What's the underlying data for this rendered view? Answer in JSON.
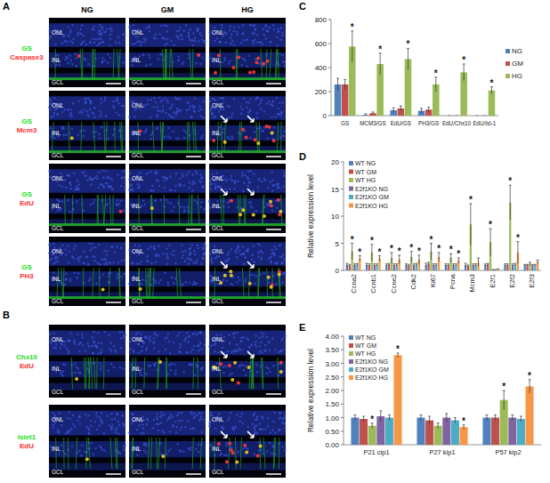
{
  "panels": {
    "A": {
      "label": "A",
      "columns": [
        "NG",
        "GM",
        "HG"
      ],
      "rows": [
        {
          "stains": [
            "GS",
            "Caspase3"
          ],
          "colors": [
            "#22dd22",
            "#ff3030"
          ]
        },
        {
          "stains": [
            "GS",
            "Mcm3"
          ],
          "colors": [
            "#22dd22",
            "#ff3030"
          ]
        },
        {
          "stains": [
            "GS",
            "EdU"
          ],
          "colors": [
            "#22dd22",
            "#ff3030"
          ]
        },
        {
          "stains": [
            "GS",
            "PH3"
          ],
          "colors": [
            "#22dd22",
            "#ff3030"
          ]
        }
      ]
    },
    "B": {
      "label": "B",
      "rows": [
        {
          "stains": [
            "Chx10",
            "EdU"
          ],
          "colors": [
            "#22dd22",
            "#ff3030"
          ]
        },
        {
          "stains": [
            "Islet1",
            "EdU"
          ],
          "colors": [
            "#22dd22",
            "#ff3030"
          ]
        }
      ]
    },
    "layers": [
      "ONL",
      "INL",
      "GCL"
    ]
  },
  "chart_data": [
    {
      "type": "bar",
      "panel_label": "C",
      "categories": [
        "GS",
        "MCM3/GS",
        "EdU/GS",
        "PH3/GS",
        "EdU/Chx10",
        "EdU/Isl-1"
      ],
      "series": [
        {
          "name": "NG",
          "color": "#4f81bd",
          "values": [
            260,
            5,
            45,
            40,
            0,
            0
          ],
          "errors": [
            50,
            10,
            20,
            20,
            0,
            0
          ]
        },
        {
          "name": "GM",
          "color": "#c0504d",
          "values": [
            260,
            20,
            60,
            50,
            0,
            0
          ],
          "errors": [
            40,
            10,
            20,
            20,
            0,
            0
          ]
        },
        {
          "name": "HG",
          "color": "#9bbb59",
          "values": [
            575,
            430,
            470,
            260,
            360,
            210
          ],
          "errors": [
            130,
            90,
            90,
            60,
            70,
            30
          ]
        }
      ],
      "ylim": [
        0,
        800
      ],
      "yticks": [
        0,
        200,
        400,
        600,
        800
      ],
      "legend": "right",
      "annotations": [
        {
          "text": "*",
          "category": 0,
          "series": 2
        },
        {
          "text": "*",
          "category": 1,
          "series": 2
        },
        {
          "text": "*",
          "category": 2,
          "series": 2
        },
        {
          "text": "*",
          "category": 3,
          "series": 2
        },
        {
          "text": "*",
          "category": 4,
          "series": 2
        },
        {
          "text": "*",
          "category": 5,
          "series": 2
        }
      ]
    },
    {
      "type": "bar",
      "panel_label": "D",
      "ylabel": "Relative expression level",
      "categories": [
        "Ccna2",
        "Ccnb1",
        "Ccne2",
        "Cdk2",
        "Ki67",
        "Pcna",
        "Mcm3",
        "E2f1",
        "E2f2",
        "E2f3"
      ],
      "series": [
        {
          "name": "WT NG",
          "color": "#4f81bd",
          "values": [
            1,
            1,
            1,
            1,
            1,
            1,
            1,
            1,
            1,
            1
          ],
          "errors": [
            0.3,
            0.3,
            0.2,
            0.2,
            0.3,
            0.2,
            0.3,
            0.2,
            0.2,
            0.1
          ]
        },
        {
          "name": "WT GM",
          "color": "#c0504d",
          "values": [
            0.9,
            1.0,
            1.1,
            0.9,
            1.2,
            1.0,
            0.8,
            1.1,
            1.0,
            1.0
          ],
          "errors": [
            0.2,
            0.2,
            0.2,
            0.2,
            0.3,
            0.2,
            0.2,
            0.2,
            0.2,
            0.1
          ]
        },
        {
          "name": "WT HG",
          "color": "#9bbb59",
          "values": [
            3.5,
            3.3,
            2.3,
            2.5,
            3.5,
            2.3,
            8.5,
            5.2,
            12.5,
            1.2
          ],
          "errors": [
            1.5,
            1.5,
            1.0,
            1.0,
            1.5,
            0.8,
            3.8,
            2.5,
            3.2,
            0.3
          ]
        },
        {
          "name": "E2f1KO NG",
          "color": "#8064a2",
          "values": [
            1,
            1,
            1,
            1,
            1,
            1,
            1,
            0.1,
            1,
            1
          ],
          "errors": [
            0.2,
            0.2,
            0.2,
            0.2,
            0.2,
            0.2,
            0.2,
            0.05,
            0.2,
            0.1
          ]
        },
        {
          "name": "E2f1KO GM",
          "color": "#4bacc6",
          "values": [
            1.1,
            1.0,
            1.0,
            1.1,
            1.0,
            1.0,
            1.0,
            0.1,
            1.1,
            1.0
          ],
          "errors": [
            0.2,
            0.2,
            0.2,
            0.2,
            0.2,
            0.2,
            0.2,
            0.05,
            0.2,
            0.1
          ]
        },
        {
          "name": "E2f1KO HG",
          "color": "#f79646",
          "values": [
            2.2,
            2.2,
            2.0,
            2.0,
            2.5,
            1.8,
            1.5,
            0.2,
            3.3,
            1.6
          ],
          "errors": [
            0.5,
            0.5,
            0.8,
            0.8,
            0.8,
            0.5,
            0.8,
            0.1,
            2.0,
            0.3
          ]
        }
      ],
      "ylim": [
        0,
        20
      ],
      "yticks": [
        0,
        5,
        10,
        15,
        20
      ],
      "legend": "upper left",
      "annotations": [
        {
          "text": "*",
          "category": 0,
          "series": 2
        },
        {
          "text": "*",
          "category": 1,
          "series": 2
        },
        {
          "text": "*",
          "category": 2,
          "series": 2
        },
        {
          "text": "*",
          "category": 3,
          "series": 2
        },
        {
          "text": "*",
          "category": 4,
          "series": 2
        },
        {
          "text": "*",
          "category": 5,
          "series": 2
        },
        {
          "text": "*",
          "category": 6,
          "series": 2
        },
        {
          "text": "*",
          "category": 7,
          "series": 2
        },
        {
          "text": "*",
          "category": 8,
          "series": 2
        },
        {
          "text": "*",
          "category": 0,
          "series": 5
        },
        {
          "text": "*",
          "category": 1,
          "series": 5
        },
        {
          "text": "*",
          "category": 2,
          "series": 5
        },
        {
          "text": "*",
          "category": 3,
          "series": 5
        },
        {
          "text": "*",
          "category": 4,
          "series": 5
        },
        {
          "text": "*",
          "category": 5,
          "series": 5
        },
        {
          "text": "*",
          "category": 8,
          "series": 5
        }
      ]
    },
    {
      "type": "bar",
      "panel_label": "E",
      "ylabel": "Relative expression level",
      "categories": [
        "P21 cip1",
        "P27 kip1",
        "P57 kip2"
      ],
      "series": [
        {
          "name": "WT NG",
          "color": "#4f81bd",
          "values": [
            1.0,
            1.0,
            1.0
          ],
          "errors": [
            0.1,
            0.1,
            0.1
          ]
        },
        {
          "name": "WT GM",
          "color": "#c0504d",
          "values": [
            0.95,
            0.9,
            1.0
          ],
          "errors": [
            0.1,
            0.15,
            0.1
          ]
        },
        {
          "name": "WT HG",
          "color": "#9bbb59",
          "values": [
            0.7,
            0.7,
            1.65
          ],
          "errors": [
            0.1,
            0.1,
            0.35
          ]
        },
        {
          "name": "E2f1KO NG",
          "color": "#8064a2",
          "values": [
            1.05,
            1.0,
            1.0
          ],
          "errors": [
            0.2,
            0.15,
            0.1
          ]
        },
        {
          "name": "E2f1KO GM",
          "color": "#4bacc6",
          "values": [
            1.0,
            0.9,
            0.95
          ],
          "errors": [
            0.1,
            0.1,
            0.1
          ]
        },
        {
          "name": "E2f1KO HG",
          "color": "#f79646",
          "values": [
            3.3,
            0.65,
            2.15
          ],
          "errors": [
            0.08,
            0.08,
            0.25
          ]
        }
      ],
      "ylim": [
        0,
        4
      ],
      "yticks": [
        {
          "value": 0,
          "label": "0.00"
        },
        {
          "value": 0.5,
          "label": "0.50"
        },
        {
          "value": 1,
          "label": "1.00"
        },
        {
          "value": 1.5,
          "label": "1.50"
        },
        {
          "value": 2,
          "label": "2.00"
        },
        {
          "value": 2.5,
          "label": "2.50"
        },
        {
          "value": 3,
          "label": "3.00"
        },
        {
          "value": 3.5,
          "label": "3.50"
        },
        {
          "value": 4,
          "label": "4.00"
        }
      ],
      "legend": "upper left",
      "annotations": [
        {
          "text": "*",
          "category": 0,
          "series": 2
        },
        {
          "text": "*",
          "category": 0,
          "series": 5
        },
        {
          "text": "*",
          "category": 1,
          "series": 5
        },
        {
          "text": "*",
          "category": 2,
          "series": 2
        },
        {
          "text": "*",
          "category": 2,
          "series": 5
        }
      ]
    }
  ]
}
